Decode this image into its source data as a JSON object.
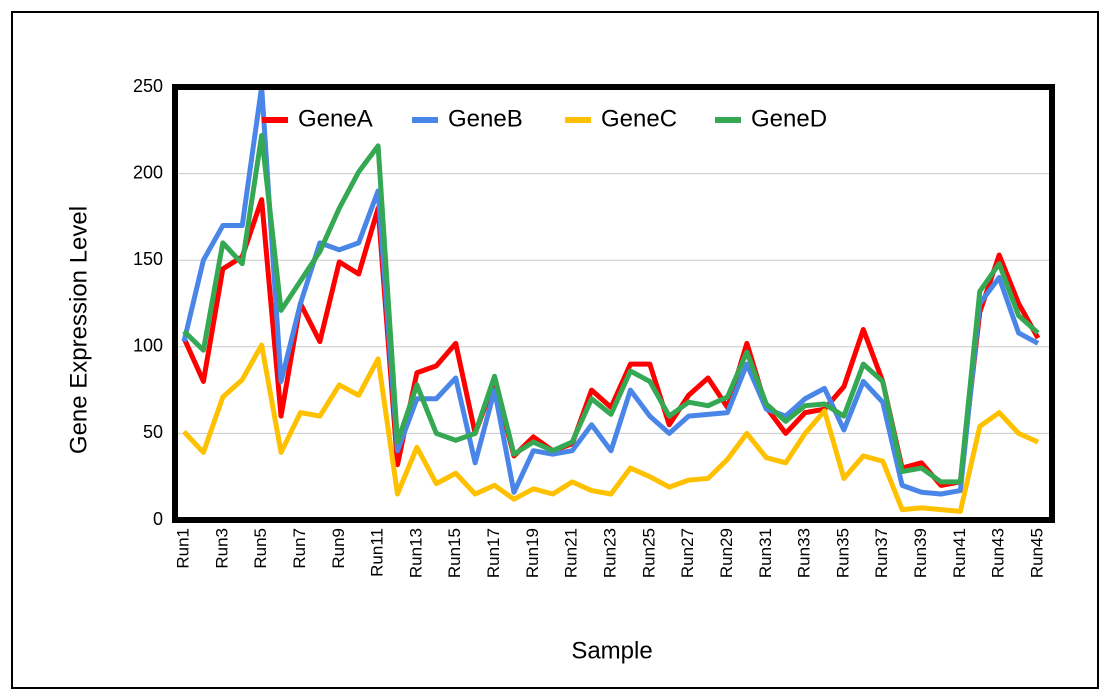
{
  "chart_data": {
    "type": "line",
    "x_label": "Sample",
    "y_label": "Gene Expression Level",
    "categories": [
      "Run1",
      null,
      "Run3",
      null,
      "Run5",
      null,
      "Run7",
      null,
      "Run9",
      null,
      "Run11",
      null,
      "Run13",
      null,
      "Run15",
      null,
      "Run17",
      null,
      "Run19",
      null,
      "Run21",
      null,
      "Run23",
      null,
      "Run25",
      null,
      "Run27",
      null,
      "Run29",
      null,
      "Run31",
      null,
      "Run33",
      null,
      "Run35",
      null,
      "Run37",
      null,
      "Run39",
      null,
      "Run41",
      null,
      "Run43",
      null,
      "Run45"
    ],
    "series": [
      {
        "name": "GeneA",
        "color": "#ff0000",
        "values": [
          105,
          80,
          145,
          152,
          185,
          60,
          125,
          103,
          149,
          142,
          180,
          32,
          85,
          89,
          102,
          50,
          80,
          37,
          48,
          40,
          44,
          75,
          65,
          90,
          90,
          55,
          72,
          82,
          65,
          102,
          65,
          50,
          62,
          64,
          77,
          110,
          80,
          30,
          33,
          20,
          22,
          120,
          153,
          125,
          105
        ]
      },
      {
        "name": "GeneB",
        "color": "#4a86e8",
        "values": [
          103,
          150,
          170,
          170,
          250,
          80,
          125,
          160,
          156,
          160,
          190,
          40,
          70,
          70,
          82,
          33,
          75,
          16,
          40,
          38,
          40,
          55,
          40,
          75,
          60,
          50,
          60,
          61,
          62,
          90,
          64,
          60,
          70,
          76,
          52,
          80,
          68,
          20,
          16,
          15,
          17,
          125,
          140,
          108,
          102
        ]
      },
      {
        "name": "GeneC",
        "color": "#ffc000",
        "values": [
          51,
          39,
          71,
          81,
          101,
          39,
          62,
          60,
          78,
          72,
          93,
          15,
          42,
          21,
          27,
          15,
          20,
          12,
          18,
          15,
          22,
          17,
          15,
          30,
          25,
          19,
          23,
          24,
          35,
          50,
          36,
          33,
          50,
          63,
          24,
          37,
          34,
          6,
          7,
          6,
          5,
          54,
          62,
          50,
          45
        ]
      },
      {
        "name": "GeneD",
        "color": "#34a853",
        "values": [
          109,
          98,
          160,
          148,
          222,
          121,
          138,
          155,
          180,
          201,
          216,
          45,
          78,
          50,
          46,
          50,
          83,
          38,
          45,
          40,
          45,
          70,
          61,
          86,
          80,
          60,
          68,
          66,
          71,
          97,
          67,
          57,
          66,
          67,
          60,
          90,
          80,
          28,
          30,
          22,
          22,
          132,
          148,
          118,
          108
        ]
      }
    ],
    "ylim": [
      0,
      250
    ],
    "yticks": [
      0,
      50,
      100,
      150,
      200,
      250
    ],
    "grid": true,
    "legend": "top"
  }
}
